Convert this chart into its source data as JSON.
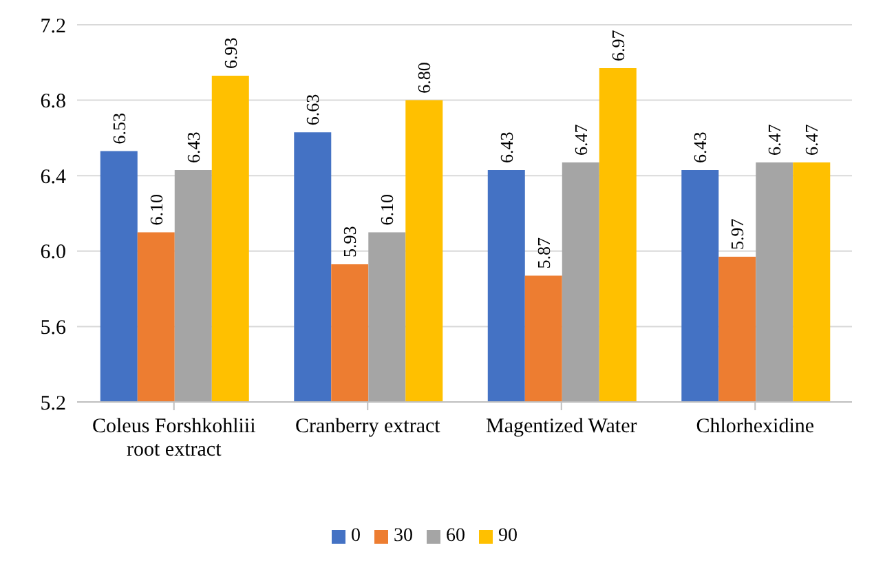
{
  "chart_data": {
    "type": "bar",
    "categories": [
      "Coleus Forshkohliii root extract",
      "Cranberry extract",
      "Magentized Water",
      "Chlorhexidine"
    ],
    "series": [
      {
        "name": "0",
        "color": "#4472c4",
        "values": [
          6.53,
          6.63,
          6.43,
          6.43
        ],
        "value_labels": [
          "6.53",
          "6.63",
          "6.43",
          "6.43"
        ]
      },
      {
        "name": "30",
        "color": "#ed7d31",
        "values": [
          6.1,
          5.93,
          5.87,
          5.97
        ],
        "value_labels": [
          "6.10",
          "5.93",
          "5.87",
          "5.97"
        ]
      },
      {
        "name": "60",
        "color": "#a5a5a5",
        "values": [
          6.43,
          6.1,
          6.47,
          6.47
        ],
        "value_labels": [
          "6.43",
          "6.10",
          "6.47",
          "6.47"
        ]
      },
      {
        "name": "90",
        "color": "#ffc000",
        "values": [
          6.93,
          6.8,
          6.97,
          6.47
        ],
        "value_labels": [
          "6.93",
          "6.80",
          "6.97",
          "6.47"
        ]
      }
    ],
    "ylim": [
      5.2,
      7.2
    ],
    "yticks": [
      5.2,
      5.6,
      {
        "value": 6,
        "label": "6.0"
      },
      6.4,
      6.8,
      7.2
    ],
    "grid": "y",
    "legend": "bottom"
  }
}
